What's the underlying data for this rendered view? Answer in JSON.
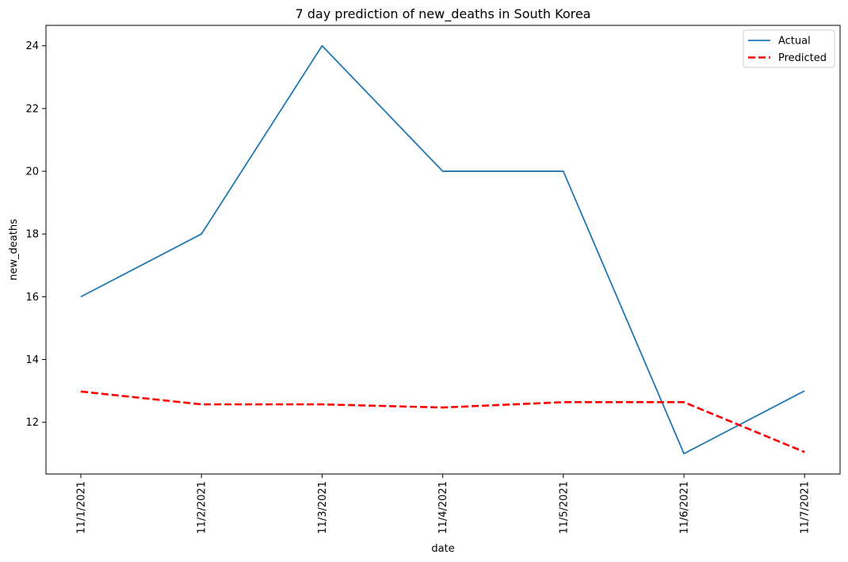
{
  "chart_data": {
    "type": "line",
    "title": "7 day prediction of new_deaths in South Korea",
    "xlabel": "date",
    "ylabel": "new_deaths",
    "categories": [
      "11/1/2021",
      "11/2/2021",
      "11/3/2021",
      "11/4/2021",
      "11/5/2021",
      "11/6/2021",
      "11/7/2021"
    ],
    "ylim": [
      10.35,
      24.65
    ],
    "yticks": [
      12,
      14,
      16,
      18,
      20,
      22,
      24
    ],
    "grid": false,
    "legend_position": "top-right",
    "series": [
      {
        "name": "Actual",
        "color": "#1f77b4",
        "style": "solid",
        "values": [
          16,
          18,
          24,
          20,
          20,
          11,
          13
        ]
      },
      {
        "name": "Predicted",
        "color": "#ff0000",
        "style": "dashed",
        "values": [
          12.98,
          12.57,
          12.57,
          12.47,
          12.64,
          12.64,
          11.05
        ]
      }
    ]
  }
}
